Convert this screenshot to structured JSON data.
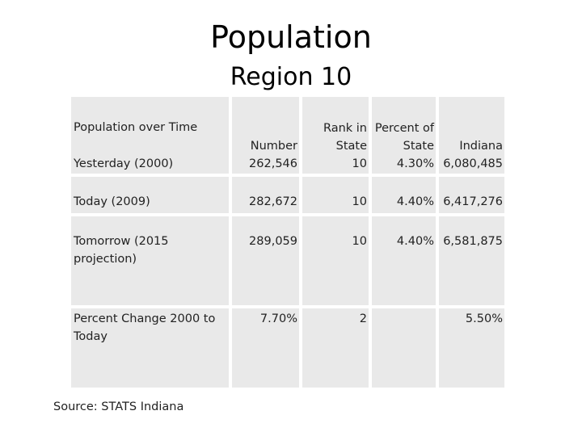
{
  "title": "Population",
  "subtitle": "Region 10",
  "table": {
    "corner_label": "Population over Time",
    "headers": {
      "number": "Number",
      "rank": [
        "Rank in",
        "State"
      ],
      "percent": [
        "Percent of",
        "State"
      ],
      "indiana": "Indiana"
    },
    "rows": [
      {
        "label": "Yesterday (2000)",
        "number": "262,546",
        "rank": "10",
        "percent": "4.30%",
        "indiana": "6,080,485"
      },
      {
        "label": "Today (2009)",
        "number": "282,672",
        "rank": "10",
        "percent": "4.40%",
        "indiana": "6,417,276"
      },
      {
        "label": "Tomorrow (2015 projection)",
        "number": "289,059",
        "rank": "10",
        "percent": "4.40%",
        "indiana": "6,581,875"
      },
      {
        "label": "Percent Change 2000 to Today",
        "number": "7.70%",
        "rank": "2",
        "percent": "",
        "indiana": "5.50%"
      }
    ]
  },
  "source": "Source:  STATS Indiana"
}
